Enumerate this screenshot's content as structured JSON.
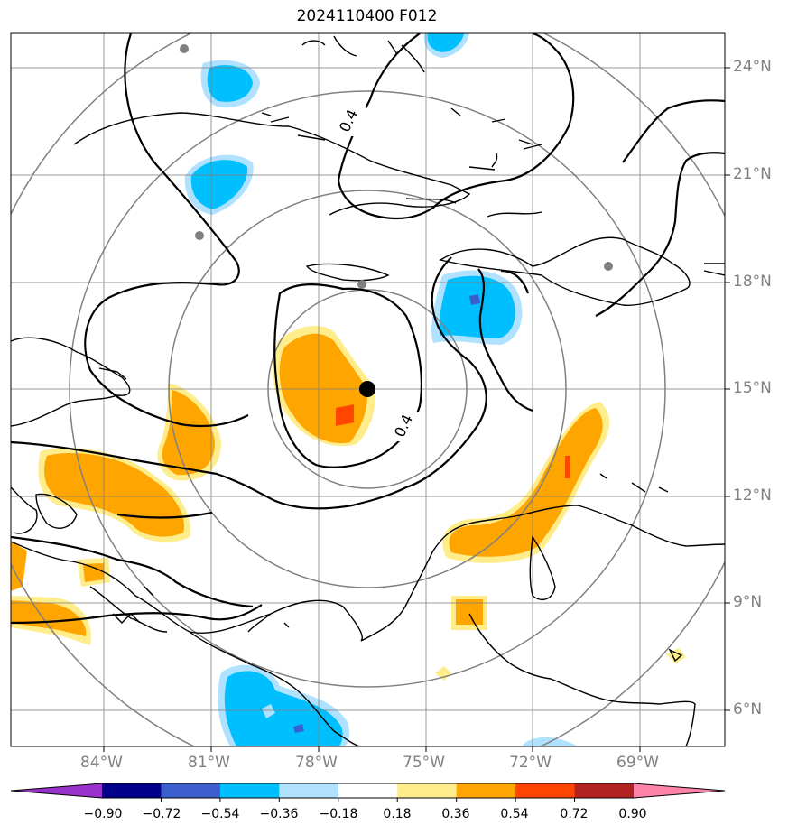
{
  "title": "2024110400 F012",
  "map": {
    "lon_labels": [
      "84°W",
      "81°W",
      "78°W",
      "75°W",
      "72°W",
      "69°W"
    ],
    "lat_labels": [
      "24°N",
      "21°N",
      "18°N",
      "15°N",
      "12°N",
      "9°N",
      "6°N"
    ],
    "contour_labels": [
      "0.4",
      "0.4"
    ],
    "center_marker": {
      "lon": -76.5,
      "lat": 15.0,
      "color": "#000000"
    },
    "grid_color": "#808080",
    "range_ring_color": "#808080"
  },
  "colorbar": {
    "ticks": [
      "−0.90",
      "−0.72",
      "−0.54",
      "−0.36",
      "−0.18",
      "0.18",
      "0.36",
      "0.54",
      "0.72",
      "0.90"
    ],
    "colors": [
      "#9932cc",
      "#00008b",
      "#3a5fcd",
      "#00bfff",
      "#b0e2ff",
      "#ffffff",
      "#ffec8b",
      "#ffa500",
      "#ff4500",
      "#b22222",
      "#ff83a8"
    ]
  }
}
